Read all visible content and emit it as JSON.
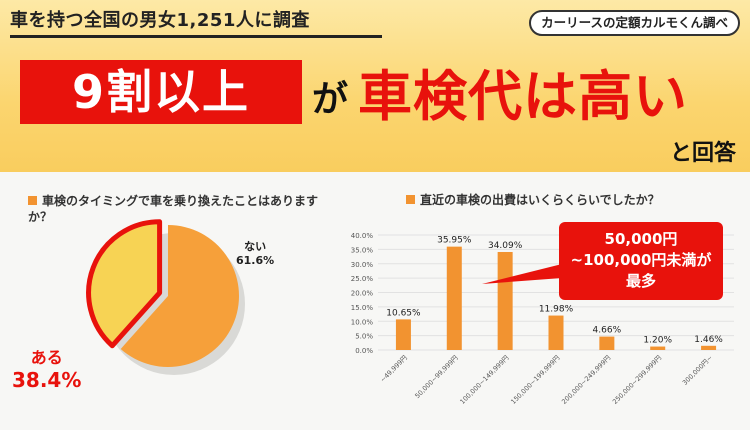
{
  "header": {
    "survey_title": "車を持つ全国の男女1,251人に調査",
    "source": "カーリースの定額カルモくん調べ",
    "headline_pct": "9割以上",
    "headline_particle": "が",
    "headline_statement": "車検代は高い",
    "headline_answer": "と回答"
  },
  "colors": {
    "accent_red": "#e8120c",
    "bar_orange": "#f29330",
    "pie_yes": "#f7d354",
    "pie_no": "#f6a03a",
    "banner_yellow": "#fbd56f"
  },
  "chart_data": [
    {
      "type": "pie",
      "title": "車検のタイミングで車を乗り換えたことはありますか？",
      "slices": [
        {
          "label": "ない",
          "value": 61.6,
          "display": "61.6%"
        },
        {
          "label": "ある",
          "value": 38.4,
          "display": "38.4%"
        }
      ]
    },
    {
      "type": "bar",
      "title": "直近の車検の出費はいくらくらいでしたか？",
      "categories": [
        "~49,999円",
        "50,000~99,999円",
        "100,000~149,999円",
        "150,000~199,999円",
        "200,000~249,999円",
        "250,000~299,999円",
        "300,000円~"
      ],
      "values": [
        10.65,
        35.95,
        34.09,
        11.98,
        4.66,
        1.2,
        1.46
      ],
      "value_labels": [
        "10.65%",
        "35.95%",
        "34.09%",
        "11.98%",
        "4.66%",
        "1.20%",
        "1.46%"
      ],
      "y_ticks": [
        "0.0%",
        "5.0%",
        "10.0%",
        "15.0%",
        "20.0%",
        "25.0%",
        "30.0%",
        "35.0%",
        "40.0%"
      ],
      "ylim": [
        0,
        40
      ],
      "grid": true,
      "callout": [
        "50,000円",
        "~100,000円未満が",
        "最多"
      ]
    }
  ]
}
